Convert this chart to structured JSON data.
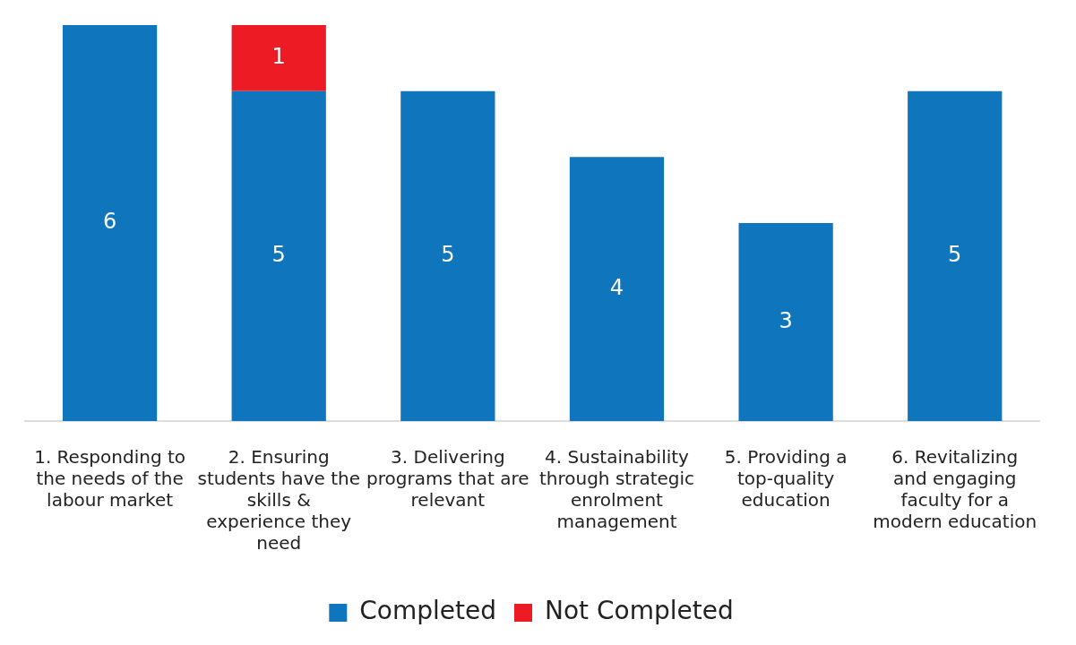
{
  "chart_data": {
    "type": "bar",
    "stacked": true,
    "categories": [
      "1. Responding to the needs of the labour market",
      "2. Ensuring students have the skills & experience they need",
      "3. Delivering programs that are relevant",
      "4. Sustainability through strategic enrolment management",
      "5. Providing a top-quality education",
      "6. Revitalizing and engaging faculty for a modern education"
    ],
    "series": [
      {
        "name": "Completed",
        "color": "#0f75bc",
        "values": [
          6,
          5,
          5,
          4,
          3,
          5
        ]
      },
      {
        "name": "Not Completed",
        "color": "#ed1c24",
        "values": [
          null,
          1,
          null,
          null,
          null,
          null
        ]
      }
    ],
    "data_labels": true,
    "legend": "bottom",
    "grid": false,
    "tick_labels": "x"
  }
}
